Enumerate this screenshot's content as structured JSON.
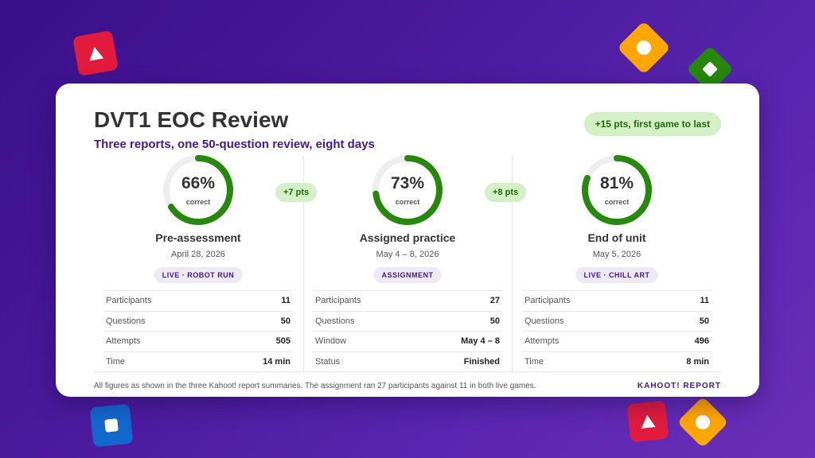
{
  "title": "DVT1 EOC Review",
  "subtitle": "Three reports, one 50-question review, eight days",
  "overall_badge": "+15 pts, first game to last",
  "colors": {
    "purple": "#46178f",
    "green": "#26890c",
    "badge_bg": "#d3f0c6",
    "ring_track": "#eeeeee"
  },
  "ring_caption": "correct",
  "reports": [
    {
      "percent": 66,
      "percent_label": "66%",
      "name": "Pre-assessment",
      "date": "April 28, 2026",
      "mode": "LIVE · ROBOT RUN",
      "stats": [
        {
          "label": "Participants",
          "value": "11"
        },
        {
          "label": "Questions",
          "value": "50"
        },
        {
          "label": "Attempts",
          "value": "505"
        },
        {
          "label": "Time",
          "value": "14 min"
        }
      ]
    },
    {
      "percent": 73,
      "percent_label": "73%",
      "name": "Assigned practice",
      "date": "May 4 – 8, 2026",
      "mode": "ASSIGNMENT",
      "stats": [
        {
          "label": "Participants",
          "value": "27"
        },
        {
          "label": "Questions",
          "value": "50"
        },
        {
          "label": "Window",
          "value": "May 4 – 8"
        },
        {
          "label": "Status",
          "value": "Finished"
        }
      ]
    },
    {
      "percent": 81,
      "percent_label": "81%",
      "name": "End of unit",
      "date": "May 5, 2026",
      "mode": "LIVE · CHILL ART",
      "stats": [
        {
          "label": "Participants",
          "value": "11"
        },
        {
          "label": "Questions",
          "value": "50"
        },
        {
          "label": "Attempts",
          "value": "496"
        },
        {
          "label": "Time",
          "value": "8 min"
        }
      ]
    }
  ],
  "deltas": [
    "+7 pts",
    "+8 pts"
  ],
  "footnote": "All figures as shown in the three Kahoot! report summaries. The assignment ran 27 participants against 11 in both live games.",
  "brand": "KAHOOT! REPORT"
}
